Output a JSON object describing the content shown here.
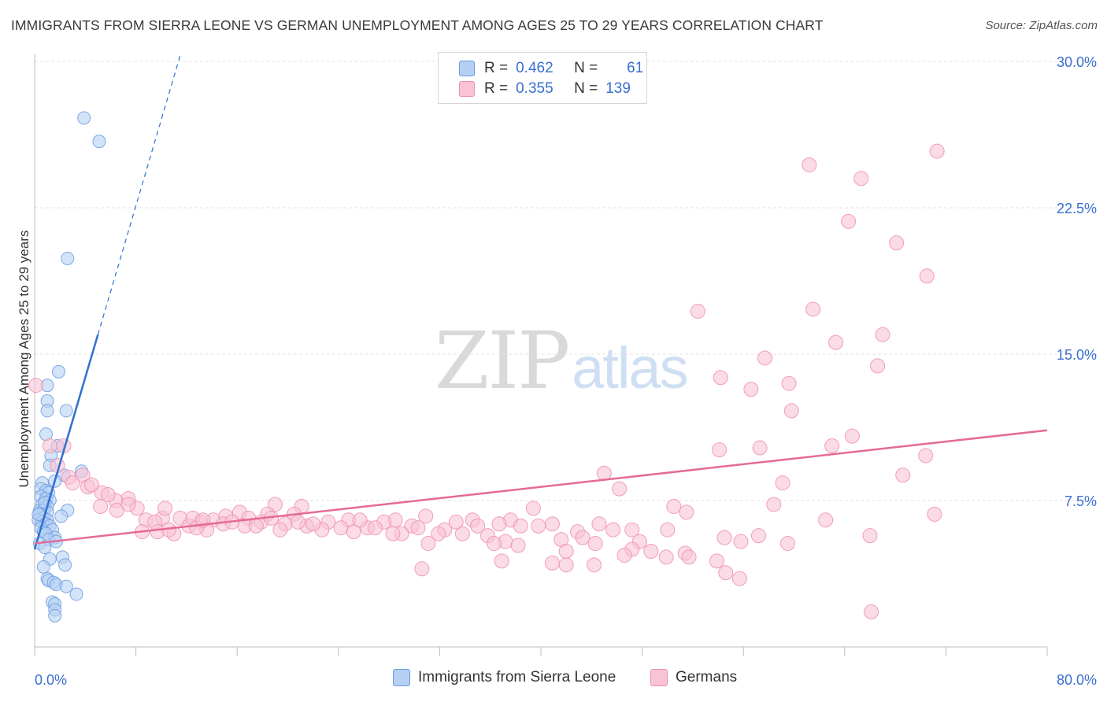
{
  "header": {
    "title": "IMMIGRANTS FROM SIERRA LEONE VS GERMAN UNEMPLOYMENT AMONG AGES 25 TO 29 YEARS CORRELATION CHART",
    "source": "Source: ZipAtlas.com"
  },
  "legend_top": {
    "rows": [
      {
        "r_label": "R =",
        "r_value": "0.462",
        "n_label": "N =",
        "n_value": "61"
      },
      {
        "r_label": "R =",
        "r_value": "0.355",
        "n_label": "N =",
        "n_value": "139"
      }
    ]
  },
  "watermark": {
    "zip": "ZIP",
    "atlas": "atlas"
  },
  "colors": {
    "blue_fill": "#b6d0f3",
    "blue_stroke": "#6b9be0",
    "blue_line": "#2f6fd2",
    "pink_fill": "#f8c3d3",
    "pink_stroke": "#ee8fae",
    "pink_line": "#e56a96",
    "tick_label": "#3a6fd0",
    "grid": "#e3e3e3"
  },
  "chart_data": {
    "type": "scatter",
    "title": "IMMIGRANTS FROM SIERRA LEONE VS GERMAN UNEMPLOYMENT AMONG AGES 25 TO 29 YEARS CORRELATION CHART",
    "xlabel": "",
    "ylabel": "Unemployment Among Ages 25 to 29 years",
    "xlim": [
      0,
      80
    ],
    "ylim": [
      0,
      30
    ],
    "x_tick_labels": [
      "0.0%",
      "80.0%"
    ],
    "y_ticks": [
      7.5,
      15.0,
      22.5,
      30.0
    ],
    "y_tick_labels": [
      "7.5%",
      "15.0%",
      "22.5%",
      "30.0%"
    ],
    "grid": true,
    "legend_position": "bottom",
    "series": [
      {
        "name": "Immigrants from Sierra Leone",
        "r": 0.462,
        "n": 61,
        "trend": {
          "x0": 0.0,
          "y0": 5.0,
          "x1": 5.0,
          "y1": 16.0,
          "dashed_to_x": 11.5,
          "dashed_to_y": 30.3
        },
        "points": [
          [
            3.9,
            27.1
          ],
          [
            5.1,
            25.9
          ],
          [
            2.6,
            19.9
          ],
          [
            1.9,
            14.1
          ],
          [
            1.0,
            13.4
          ],
          [
            1.0,
            12.6
          ],
          [
            1.0,
            12.1
          ],
          [
            2.5,
            12.1
          ],
          [
            0.9,
            10.9
          ],
          [
            1.8,
            10.3
          ],
          [
            1.3,
            9.8
          ],
          [
            1.2,
            9.3
          ],
          [
            3.7,
            9.0
          ],
          [
            2.3,
            8.8
          ],
          [
            1.6,
            8.5
          ],
          [
            0.6,
            8.4
          ],
          [
            0.5,
            8.1
          ],
          [
            0.9,
            8.0
          ],
          [
            1.1,
            7.9
          ],
          [
            0.5,
            7.7
          ],
          [
            0.9,
            7.6
          ],
          [
            1.2,
            7.5
          ],
          [
            0.6,
            7.3
          ],
          [
            1.0,
            7.2
          ],
          [
            0.4,
            7.0
          ],
          [
            0.7,
            7.0
          ],
          [
            2.6,
            7.0
          ],
          [
            1.0,
            6.9
          ],
          [
            0.4,
            6.8
          ],
          [
            2.1,
            6.7
          ],
          [
            0.7,
            6.6
          ],
          [
            1.0,
            6.5
          ],
          [
            0.3,
            6.5
          ],
          [
            0.6,
            6.4
          ],
          [
            0.9,
            6.3
          ],
          [
            1.2,
            6.2
          ],
          [
            0.5,
            6.1
          ],
          [
            1.4,
            6.0
          ],
          [
            0.7,
            5.9
          ],
          [
            0.9,
            5.8
          ],
          [
            1.6,
            5.6
          ],
          [
            1.1,
            5.5
          ],
          [
            1.7,
            5.4
          ],
          [
            0.4,
            5.3
          ],
          [
            0.8,
            5.1
          ],
          [
            2.2,
            4.6
          ],
          [
            1.2,
            4.5
          ],
          [
            0.7,
            4.1
          ],
          [
            2.4,
            4.2
          ],
          [
            1.0,
            3.5
          ],
          [
            1.1,
            3.4
          ],
          [
            1.5,
            3.3
          ],
          [
            1.7,
            3.2
          ],
          [
            2.5,
            3.1
          ],
          [
            3.3,
            2.7
          ],
          [
            1.4,
            2.3
          ],
          [
            1.6,
            2.2
          ],
          [
            1.6,
            1.9
          ],
          [
            1.6,
            1.6
          ],
          [
            0.3,
            6.8
          ],
          [
            0.8,
            7.4
          ]
        ]
      },
      {
        "name": "Germans",
        "r": 0.355,
        "n": 139,
        "trend": {
          "x0": 0.0,
          "y0": 5.3,
          "x1": 80.0,
          "y1": 11.1
        },
        "points": [
          [
            71.3,
            25.4
          ],
          [
            61.2,
            24.7
          ],
          [
            65.3,
            24.0
          ],
          [
            64.3,
            21.8
          ],
          [
            68.1,
            20.7
          ],
          [
            70.5,
            19.0
          ],
          [
            52.4,
            17.2
          ],
          [
            61.5,
            17.3
          ],
          [
            67.0,
            16.0
          ],
          [
            63.3,
            15.6
          ],
          [
            57.7,
            14.8
          ],
          [
            66.6,
            14.4
          ],
          [
            54.2,
            13.8
          ],
          [
            56.6,
            13.2
          ],
          [
            59.6,
            13.5
          ],
          [
            59.8,
            12.1
          ],
          [
            0.1,
            13.4
          ],
          [
            1.2,
            10.3
          ],
          [
            2.3,
            10.3
          ],
          [
            1.8,
            9.3
          ],
          [
            64.6,
            10.8
          ],
          [
            63.0,
            10.3
          ],
          [
            57.3,
            10.2
          ],
          [
            54.1,
            10.1
          ],
          [
            70.4,
            9.8
          ],
          [
            3.8,
            8.8
          ],
          [
            2.7,
            8.7
          ],
          [
            68.6,
            8.8
          ],
          [
            45.0,
            8.9
          ],
          [
            3.0,
            8.4
          ],
          [
            59.1,
            8.4
          ],
          [
            4.2,
            8.2
          ],
          [
            46.2,
            8.1
          ],
          [
            5.3,
            7.9
          ],
          [
            7.4,
            7.6
          ],
          [
            6.4,
            7.5
          ],
          [
            19.0,
            7.3
          ],
          [
            21.1,
            7.2
          ],
          [
            58.4,
            7.3
          ],
          [
            50.5,
            7.2
          ],
          [
            5.2,
            7.2
          ],
          [
            8.1,
            7.1
          ],
          [
            6.5,
            7.0
          ],
          [
            39.4,
            7.1
          ],
          [
            51.5,
            6.9
          ],
          [
            16.2,
            6.9
          ],
          [
            18.4,
            6.8
          ],
          [
            20.5,
            6.8
          ],
          [
            30.9,
            6.7
          ],
          [
            71.1,
            6.8
          ],
          [
            15.1,
            6.7
          ],
          [
            11.5,
            6.6
          ],
          [
            16.9,
            6.6
          ],
          [
            10.1,
            6.6
          ],
          [
            8.8,
            6.5
          ],
          [
            14.1,
            6.5
          ],
          [
            34.6,
            6.5
          ],
          [
            28.5,
            6.5
          ],
          [
            37.6,
            6.5
          ],
          [
            24.8,
            6.5
          ],
          [
            62.5,
            6.5
          ],
          [
            13.1,
            6.4
          ],
          [
            9.5,
            6.4
          ],
          [
            17.9,
            6.4
          ],
          [
            23.2,
            6.4
          ],
          [
            27.6,
            6.4
          ],
          [
            19.8,
            6.3
          ],
          [
            40.9,
            6.3
          ],
          [
            44.6,
            6.3
          ],
          [
            36.7,
            6.3
          ],
          [
            29.8,
            6.2
          ],
          [
            38.4,
            6.2
          ],
          [
            35.0,
            6.2
          ],
          [
            12.2,
            6.2
          ],
          [
            21.5,
            6.2
          ],
          [
            24.2,
            6.1
          ],
          [
            26.3,
            6.1
          ],
          [
            22.7,
            6.0
          ],
          [
            50.0,
            6.0
          ],
          [
            45.7,
            6.0
          ],
          [
            32.4,
            6.0
          ],
          [
            47.2,
            6.0
          ],
          [
            8.5,
            5.9
          ],
          [
            25.2,
            5.9
          ],
          [
            29.0,
            5.8
          ],
          [
            11.0,
            5.8
          ],
          [
            33.8,
            5.8
          ],
          [
            31.9,
            5.8
          ],
          [
            42.9,
            5.9
          ],
          [
            9.7,
            5.9
          ],
          [
            28.3,
            5.8
          ],
          [
            57.2,
            5.7
          ],
          [
            35.8,
            5.7
          ],
          [
            43.3,
            5.6
          ],
          [
            54.5,
            5.6
          ],
          [
            66.0,
            5.7
          ],
          [
            41.6,
            5.5
          ],
          [
            55.8,
            5.4
          ],
          [
            37.2,
            5.4
          ],
          [
            47.8,
            5.4
          ],
          [
            44.3,
            5.3
          ],
          [
            31.1,
            5.3
          ],
          [
            36.3,
            5.3
          ],
          [
            59.5,
            5.3
          ],
          [
            38.2,
            5.2
          ],
          [
            47.2,
            5.0
          ],
          [
            48.7,
            4.9
          ],
          [
            51.4,
            4.8
          ],
          [
            42.0,
            4.9
          ],
          [
            46.6,
            4.7
          ],
          [
            49.9,
            4.6
          ],
          [
            36.9,
            4.4
          ],
          [
            40.9,
            4.3
          ],
          [
            53.9,
            4.4
          ],
          [
            44.2,
            4.2
          ],
          [
            42.0,
            4.2
          ],
          [
            51.7,
            4.6
          ],
          [
            54.6,
            3.8
          ],
          [
            55.7,
            3.5
          ],
          [
            30.6,
            4.0
          ],
          [
            66.1,
            1.8
          ],
          [
            7.4,
            7.3
          ],
          [
            16.6,
            6.2
          ],
          [
            17.5,
            6.2
          ],
          [
            19.4,
            6.0
          ],
          [
            20.8,
            6.4
          ],
          [
            10.6,
            6.0
          ],
          [
            13.6,
            6.0
          ],
          [
            14.9,
            6.3
          ],
          [
            12.5,
            6.6
          ],
          [
            18.7,
            6.6
          ],
          [
            26.9,
            6.1
          ],
          [
            22.0,
            6.3
          ],
          [
            39.8,
            6.2
          ],
          [
            33.3,
            6.4
          ],
          [
            30.3,
            6.1
          ],
          [
            25.7,
            6.5
          ],
          [
            12.8,
            6.1
          ],
          [
            5.8,
            7.8
          ],
          [
            13.3,
            6.5
          ],
          [
            15.6,
            6.4
          ],
          [
            10.3,
            7.1
          ],
          [
            4.5,
            8.3
          ]
        ]
      }
    ]
  },
  "legend_bottom": {
    "items": [
      "Immigrants from Sierra Leone",
      "Germans"
    ]
  }
}
